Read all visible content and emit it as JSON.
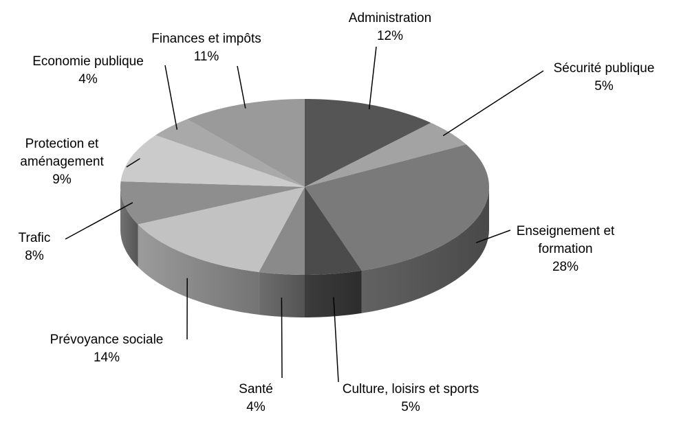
{
  "chart_data": {
    "type": "pie3d",
    "categories": [
      "Administration",
      "Sécurité publique",
      "Enseignement et formation",
      "Culture, loisirs et sports",
      "Santé",
      "Prévoyance sociale",
      "Trafic",
      "Protection et aménagement",
      "Economie publique",
      "Finances et impôts"
    ],
    "values": [
      12,
      5,
      28,
      5,
      4,
      14,
      8,
      9,
      4,
      11
    ],
    "value_labels": [
      "12%",
      "5%",
      "28%",
      "5%",
      "4%",
      "14%",
      "8%",
      "9%",
      "4%",
      "11%"
    ],
    "colors": [
      "#555555",
      "#a3a3a3",
      "#7a7a7a",
      "#4b4b4b",
      "#8a8a8a",
      "#c2c2c2",
      "#8e8e8e",
      "#cbcbcb",
      "#a9a9a9",
      "#9a9a9a"
    ]
  }
}
